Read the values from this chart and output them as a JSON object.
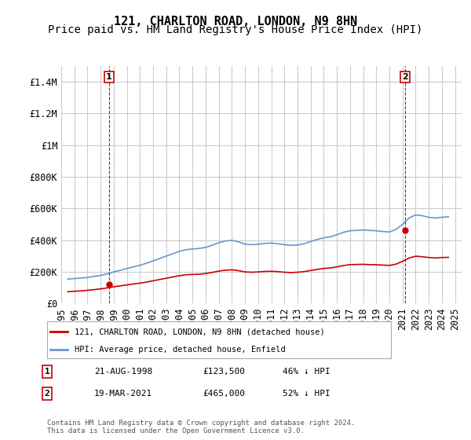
{
  "title": "121, CHARLTON ROAD, LONDON, N9 8HN",
  "subtitle": "Price paid vs. HM Land Registry's House Price Index (HPI)",
  "ylabel": "",
  "xlabel": "",
  "ylim": [
    0,
    1500000
  ],
  "yticks": [
    0,
    200000,
    400000,
    600000,
    800000,
    1000000,
    1200000,
    1400000
  ],
  "ytick_labels": [
    "£0",
    "£200K",
    "£400K",
    "£600K",
    "£800K",
    "£1M",
    "£1.2M",
    "£1.4M"
  ],
  "xstart_year": 1995,
  "xend_year": 2025,
  "sale1_date": "21-AUG-1998",
  "sale1_price": 123500,
  "sale1_label": "1",
  "sale1_x": 1998.64,
  "sale2_date": "19-MAR-2021",
  "sale2_price": 465000,
  "sale2_label": "2",
  "sale2_x": 2021.21,
  "red_color": "#cc0000",
  "blue_color": "#6699cc",
  "dashed_color": "#cc0000",
  "annotation_box_color": "#cc0000",
  "legend_label_red": "121, CHARLTON ROAD, LONDON, N9 8HN (detached house)",
  "legend_label_blue": "HPI: Average price, detached house, Enfield",
  "footnote": "Contains HM Land Registry data © Crown copyright and database right 2024.\nThis data is licensed under the Open Government Licence v3.0.",
  "background_color": "#ffffff",
  "grid_color": "#cccccc",
  "title_fontsize": 11,
  "subtitle_fontsize": 10,
  "tick_fontsize": 8.5,
  "hpi_data_x": [
    1995.5,
    1996.0,
    1996.5,
    1997.0,
    1997.5,
    1998.0,
    1998.5,
    1999.0,
    1999.5,
    2000.0,
    2000.5,
    2001.0,
    2001.5,
    2002.0,
    2002.5,
    2003.0,
    2003.5,
    2004.0,
    2004.5,
    2005.0,
    2005.5,
    2006.0,
    2006.5,
    2007.0,
    2007.5,
    2008.0,
    2008.5,
    2009.0,
    2009.5,
    2010.0,
    2010.5,
    2011.0,
    2011.5,
    2012.0,
    2012.5,
    2013.0,
    2013.5,
    2014.0,
    2014.5,
    2015.0,
    2015.5,
    2016.0,
    2016.5,
    2017.0,
    2017.5,
    2018.0,
    2018.5,
    2019.0,
    2019.5,
    2020.0,
    2020.5,
    2021.0,
    2021.5,
    2022.0,
    2022.5,
    2023.0,
    2023.5,
    2024.0,
    2024.5
  ],
  "hpi_data_y": [
    155000,
    158000,
    161000,
    165000,
    172000,
    178000,
    188000,
    200000,
    210000,
    222000,
    232000,
    242000,
    255000,
    270000,
    285000,
    300000,
    315000,
    330000,
    340000,
    345000,
    348000,
    355000,
    368000,
    385000,
    395000,
    400000,
    390000,
    375000,
    372000,
    375000,
    380000,
    382000,
    378000,
    372000,
    368000,
    370000,
    378000,
    392000,
    405000,
    415000,
    422000,
    435000,
    450000,
    460000,
    462000,
    465000,
    462000,
    460000,
    455000,
    452000,
    468000,
    500000,
    540000,
    560000,
    555000,
    545000,
    540000,
    545000,
    548000
  ],
  "red_data_x": [
    1995.5,
    1996.0,
    1996.5,
    1997.0,
    1997.5,
    1998.0,
    1998.5,
    1999.0,
    1999.5,
    2000.0,
    2000.5,
    2001.0,
    2001.5,
    2002.0,
    2002.5,
    2003.0,
    2003.5,
    2004.0,
    2004.5,
    2005.0,
    2005.5,
    2006.0,
    2006.5,
    2007.0,
    2007.5,
    2008.0,
    2008.5,
    2009.0,
    2009.5,
    2010.0,
    2010.5,
    2011.0,
    2011.5,
    2012.0,
    2012.5,
    2013.0,
    2013.5,
    2014.0,
    2014.5,
    2015.0,
    2015.5,
    2016.0,
    2016.5,
    2017.0,
    2017.5,
    2018.0,
    2018.5,
    2019.0,
    2019.5,
    2020.0,
    2020.5,
    2021.0,
    2021.5,
    2022.0,
    2022.5,
    2023.0,
    2023.5,
    2024.0,
    2024.5
  ],
  "red_data_y": [
    75000,
    78000,
    80000,
    84000,
    88000,
    93000,
    99000,
    106000,
    112000,
    118000,
    124000,
    129000,
    136000,
    144000,
    152000,
    160000,
    168000,
    176000,
    182000,
    184000,
    185000,
    190000,
    197000,
    205000,
    211000,
    213000,
    208000,
    200000,
    198000,
    200000,
    203000,
    204000,
    202000,
    198000,
    196000,
    198000,
    202000,
    209000,
    216000,
    222000,
    225000,
    232000,
    240000,
    246000,
    247000,
    248000,
    246000,
    245000,
    243000,
    241000,
    249000,
    267000,
    288000,
    299000,
    296000,
    291000,
    288000,
    291000,
    292000
  ]
}
